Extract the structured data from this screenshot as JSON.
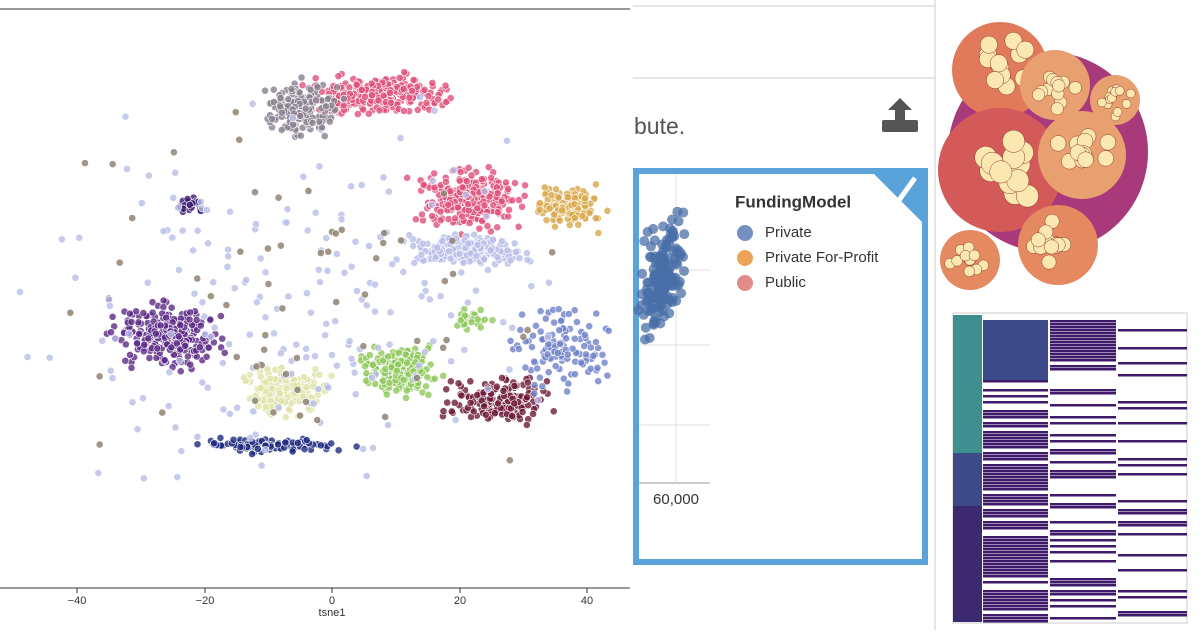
{
  "tsne_panel": {
    "x_ticks": [
      "−40",
      "−20",
      "0",
      "20",
      "40"
    ],
    "x_label": "tsne1"
  },
  "funding_panel": {
    "partial_text": "bute.",
    "legend_title": "FundingModel",
    "legend_items": [
      "Private",
      "Private For-Profit",
      "Public"
    ],
    "x_tick": "60,000"
  }
}
